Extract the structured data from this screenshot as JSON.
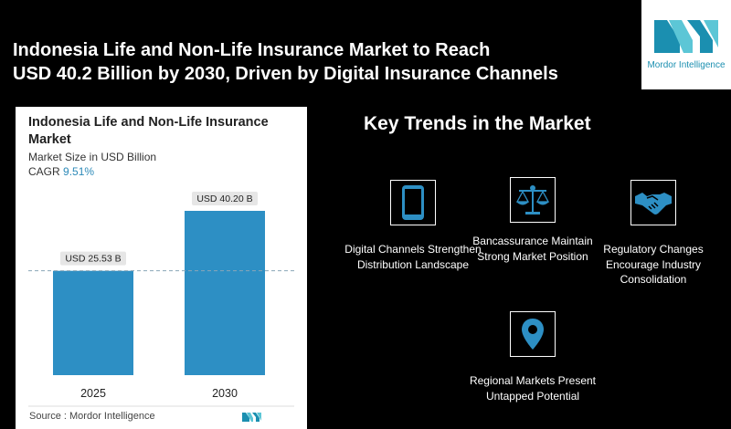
{
  "headline": {
    "line1": "Indonesia Life and Non-Life Insurance Market to Reach",
    "line2": "USD 40.2 Billion by 2030, Driven by Digital Insurance Channels"
  },
  "logo": {
    "text": "Mordor Intelligence",
    "color": "#1b8fb0"
  },
  "card": {
    "title": "Indonesia Life and Non-Life Insurance Market",
    "subtitle": "Market Size in USD Billion",
    "cagr_label": "CAGR",
    "cagr_value": "9.51%",
    "source": "Source :  Mordor Intelligence"
  },
  "chart_data": {
    "type": "bar",
    "title": "Indonesia Life and Non-Life Insurance Market",
    "ylabel": "Market Size in USD Billion",
    "categories": [
      "2025",
      "2030"
    ],
    "values": [
      25.53,
      40.2
    ],
    "data_labels": [
      "USD 25.53 B",
      "USD 40.20 B"
    ],
    "ylim": [
      0,
      40.2
    ],
    "bar_color": "#2d8fc4",
    "reference_line_at": 25.53
  },
  "trends": {
    "title": "Key Trends in the Market",
    "items": [
      {
        "label": "Digital Channels Strengthen Distribution Landscape",
        "icon": "smartphone-icon"
      },
      {
        "label": "Bancassurance Maintain Strong Market Position",
        "icon": "scales-icon"
      },
      {
        "label": "Regulatory Changes Encourage Industry Consolidation",
        "icon": "handshake-icon"
      },
      {
        "label": "Regional Markets Present Untapped Potential",
        "icon": "map-pin-icon"
      }
    ],
    "icon_color": "#2d8fc4"
  }
}
